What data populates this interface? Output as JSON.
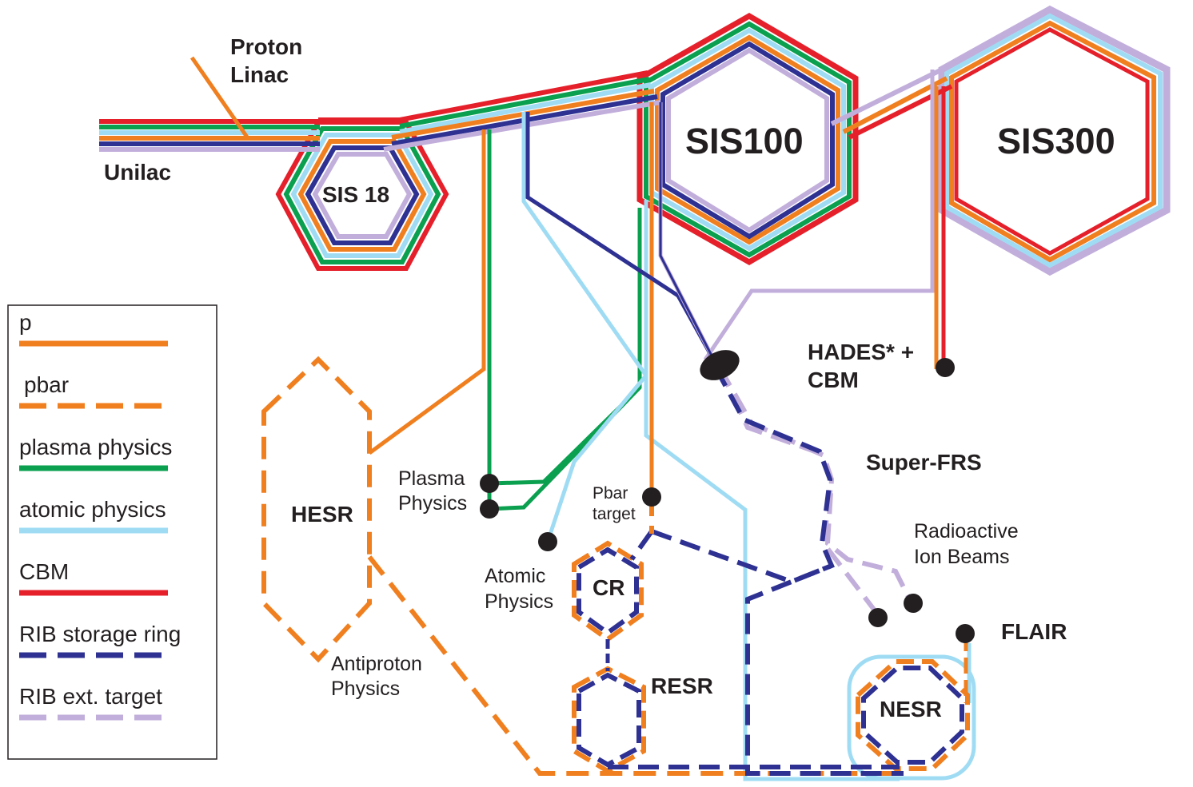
{
  "colors": {
    "p": "#f07f1f",
    "pbar": "#f07f1f",
    "plasma": "#0aa04f",
    "atomic": "#9fdcf4",
    "cbm": "#e5202b",
    "rib_ring": "#2e3192",
    "rib_target": "#c2aedb",
    "dot": "#231f20"
  },
  "labels": {
    "proton_linac_1": "Proton",
    "proton_linac_2": "Linac",
    "unilac": "Unilac",
    "sis18": "SIS 18",
    "sis100": "SIS100",
    "sis300": "SIS300",
    "hesr": "HESR",
    "cr": "CR",
    "resr": "RESR",
    "nesr": "NESR",
    "hades_cbm_1": "HADES* +",
    "hades_cbm_2": "CBM",
    "super_frs": "Super-FRS",
    "radioactive_1": "Radioactive",
    "radioactive_2": "Ion Beams",
    "flair": "FLAIR",
    "plasma_physics_1": "Plasma",
    "plasma_physics_2": "Physics",
    "pbar_target_1": "Pbar",
    "pbar_target_2": "target",
    "atomic_physics_1": "Atomic",
    "atomic_physics_2": "Physics",
    "antiproton_1": "Antiproton",
    "antiproton_2": "Physics"
  },
  "legend": {
    "items": [
      {
        "label": "p",
        "style": "solid",
        "color_key": "p"
      },
      {
        "label": "pbar",
        "style": "dashed",
        "color_key": "pbar"
      },
      {
        "label": "plasma physics",
        "style": "solid",
        "color_key": "plasma"
      },
      {
        "label": "atomic physics",
        "style": "solid",
        "color_key": "atomic"
      },
      {
        "label": "CBM",
        "style": "solid",
        "color_key": "cbm"
      },
      {
        "label": "RIB storage ring",
        "style": "dashed",
        "color_key": "rib_ring"
      },
      {
        "label": "RIB ext. target",
        "style": "dashed",
        "color_key": "rib_target"
      }
    ]
  }
}
